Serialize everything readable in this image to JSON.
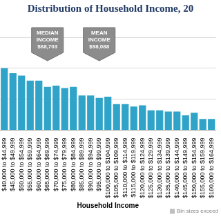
{
  "chart_data": {
    "type": "bar",
    "title": "Distribution of Household Income, 20",
    "x_label": "Household Income",
    "categories": [
      "$40,000 to $44,999",
      "$45,000 to $49,999",
      "$50,000 to $54,999",
      "$55,000 to $59,999",
      "$60,000 to $64,999",
      "$65,000 to $69,999",
      "$70,000 to $74,999",
      "$75,000 to $79,999",
      "$80,000 to $84,999",
      "$85,000 to $89,999",
      "$90,000 to $94,999",
      "$95,000 to $99,999",
      "$100,000 to $104,999",
      "$105,000 to $109,999",
      "$110,000 to $114,999",
      "$115,000 to $119,999",
      "$120,000 to $124,999",
      "$125,000 to $129,999",
      "$130,000 to $134,999",
      "$135,000 to $139,999",
      "$140,000 to $144,999",
      "$145,000 to $149,999",
      "$150,000 to $154,999",
      "$155,000 to $159,999",
      "$160,000 to $164,999"
    ],
    "values": [
      5.0,
      4.6,
      4.4,
      4.0,
      4.0,
      3.5,
      3.6,
      3.4,
      3.5,
      2.8,
      2.8,
      2.6,
      2.7,
      2.1,
      2.1,
      1.9,
      2.0,
      1.6,
      1.6,
      1.5,
      1.5,
      1.2,
      1.4,
      0.9,
      0.9
    ],
    "color": "#2fa4c8",
    "ylim": [
      0,
      7.5
    ],
    "yticks": [
      0,
      2.5,
      5,
      7.5
    ],
    "grid": true,
    "tick_labels": "x",
    "annotations": [
      {
        "text": [
          "MEDIAN",
          "INCOME",
          "$68,703"
        ],
        "category": "$65,000 to $69,999"
      },
      {
        "text": [
          "MEAN",
          "INCOME",
          "$98,088"
        ],
        "category": "$95,000 to $99,999"
      },
      {
        "text": [
          "Bin sizes exceed"
        ]
      }
    ]
  }
}
